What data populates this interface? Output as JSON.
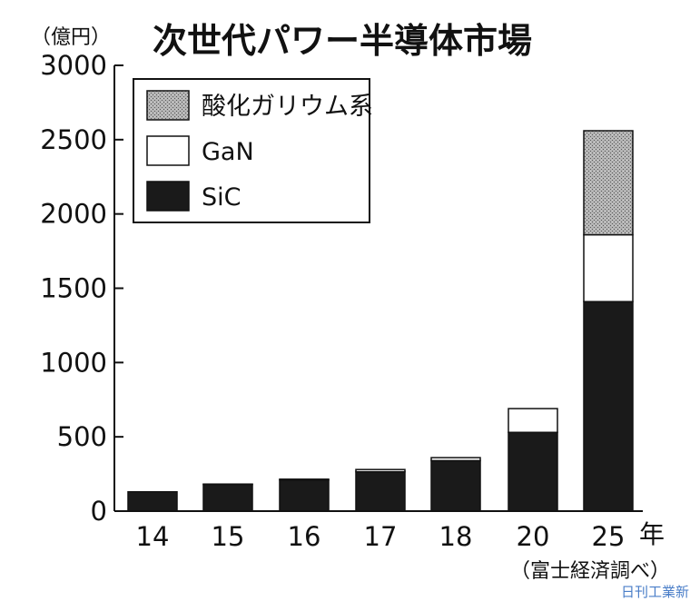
{
  "chart_data": {
    "type": "bar",
    "stacked": true,
    "title": "次世代パワー半導体市場",
    "unit_label": "（億円）",
    "x_unit": "年",
    "source": "（富士経済調べ）",
    "credit": "日刊工業新聞",
    "categories": [
      "14",
      "15",
      "16",
      "17",
      "18",
      "20",
      "25"
    ],
    "ylim": [
      0,
      3000
    ],
    "yticks": [
      0,
      500,
      1000,
      1500,
      2000,
      2500,
      3000
    ],
    "ytick_labels": [
      "0",
      "500",
      "1000",
      "1500",
      "2000",
      "2500",
      "3000"
    ],
    "grid": false,
    "legend_position": "top-left",
    "series": [
      {
        "name": "SiC",
        "values": [
          130,
          180,
          210,
          265,
          340,
          530,
          1410
        ],
        "color": "#1a1a1a",
        "pattern": "solid"
      },
      {
        "name": "GaN",
        "values": [
          0,
          2,
          5,
          15,
          20,
          160,
          450
        ],
        "color": "#ffffff",
        "pattern": "solid"
      },
      {
        "name": "酸化ガリウム系",
        "values": [
          0,
          0,
          0,
          0,
          0,
          0,
          700
        ],
        "color": "#9a9a9a",
        "pattern": "dotted-gray"
      }
    ],
    "legend_order": [
      "酸化ガリウム系",
      "GaN",
      "SiC"
    ]
  }
}
